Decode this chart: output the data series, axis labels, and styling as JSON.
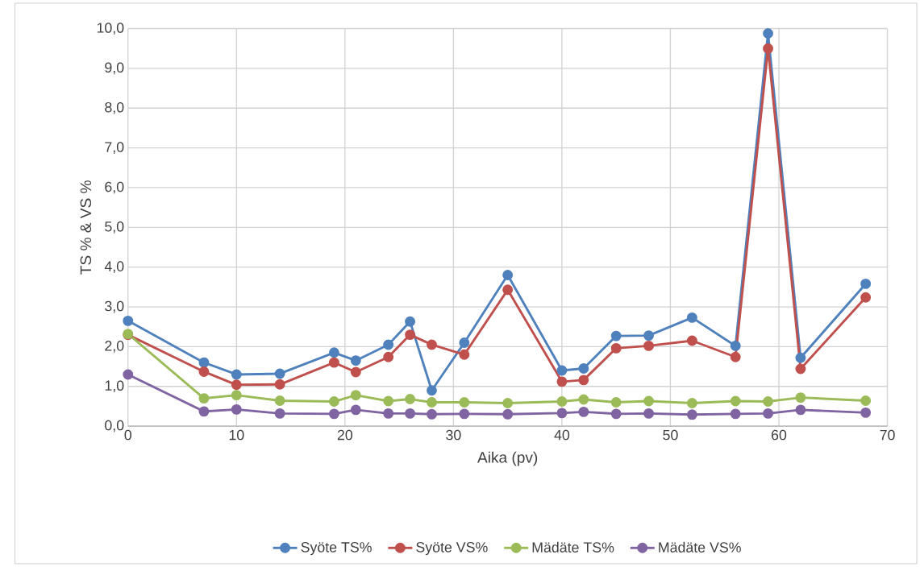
{
  "chart_data": {
    "type": "line",
    "xlabel": "Aika (pv)",
    "ylabel": "TS % & VS %",
    "x": [
      0,
      7,
      10,
      14,
      19,
      21,
      24,
      26,
      28,
      31,
      35,
      40,
      42,
      45,
      48,
      52,
      56,
      59,
      62,
      68
    ],
    "series": [
      {
        "name": "Syöte TS%",
        "color": "#4f81bd",
        "values": [
          2.65,
          1.6,
          1.3,
          1.32,
          1.85,
          1.65,
          2.05,
          2.63,
          0.9,
          2.1,
          3.8,
          1.4,
          1.45,
          2.27,
          2.28,
          2.73,
          2.02,
          9.88,
          1.72,
          3.58
        ]
      },
      {
        "name": "Syöte VS%",
        "color": "#c0504d",
        "values": [
          2.3,
          1.37,
          1.04,
          1.05,
          1.6,
          1.36,
          1.74,
          2.3,
          2.05,
          1.8,
          3.43,
          1.12,
          1.16,
          1.96,
          2.02,
          2.15,
          1.74,
          9.5,
          1.44,
          3.24
        ]
      },
      {
        "name": "Mädäte TS%",
        "color": "#9bbb59",
        "values": [
          2.32,
          0.7,
          0.78,
          0.64,
          0.62,
          0.78,
          0.63,
          0.68,
          0.6,
          0.6,
          0.58,
          0.62,
          0.67,
          0.6,
          0.63,
          0.58,
          0.63,
          0.62,
          0.72,
          0.64
        ]
      },
      {
        "name": "Mädäte VS%",
        "color": "#8064a2",
        "values": [
          1.3,
          0.37,
          0.42,
          0.32,
          0.31,
          0.41,
          0.32,
          0.32,
          0.3,
          0.31,
          0.3,
          0.33,
          0.36,
          0.31,
          0.32,
          0.29,
          0.31,
          0.32,
          0.41,
          0.34
        ]
      }
    ],
    "xlim": [
      0,
      70
    ],
    "xticks": [
      0,
      10,
      20,
      30,
      40,
      50,
      60,
      70
    ],
    "ylim": [
      0,
      10
    ],
    "yticks": [
      {
        "value": 0,
        "label": "0,0"
      },
      {
        "value": 1,
        "label": "1,0"
      },
      {
        "value": 2,
        "label": "2,0"
      },
      {
        "value": 3,
        "label": "3,0"
      },
      {
        "value": 4,
        "label": "4,0"
      },
      {
        "value": 5,
        "label": "5,0"
      },
      {
        "value": 6,
        "label": "6,0"
      },
      {
        "value": 7,
        "label": "7,0"
      },
      {
        "value": 8,
        "label": "8,0"
      },
      {
        "value": 9,
        "label": "9,0"
      },
      {
        "value": 10,
        "label": "10,0"
      }
    ],
    "grid": true,
    "legend": "bottom",
    "marker": "circle",
    "line_style": "solid"
  }
}
